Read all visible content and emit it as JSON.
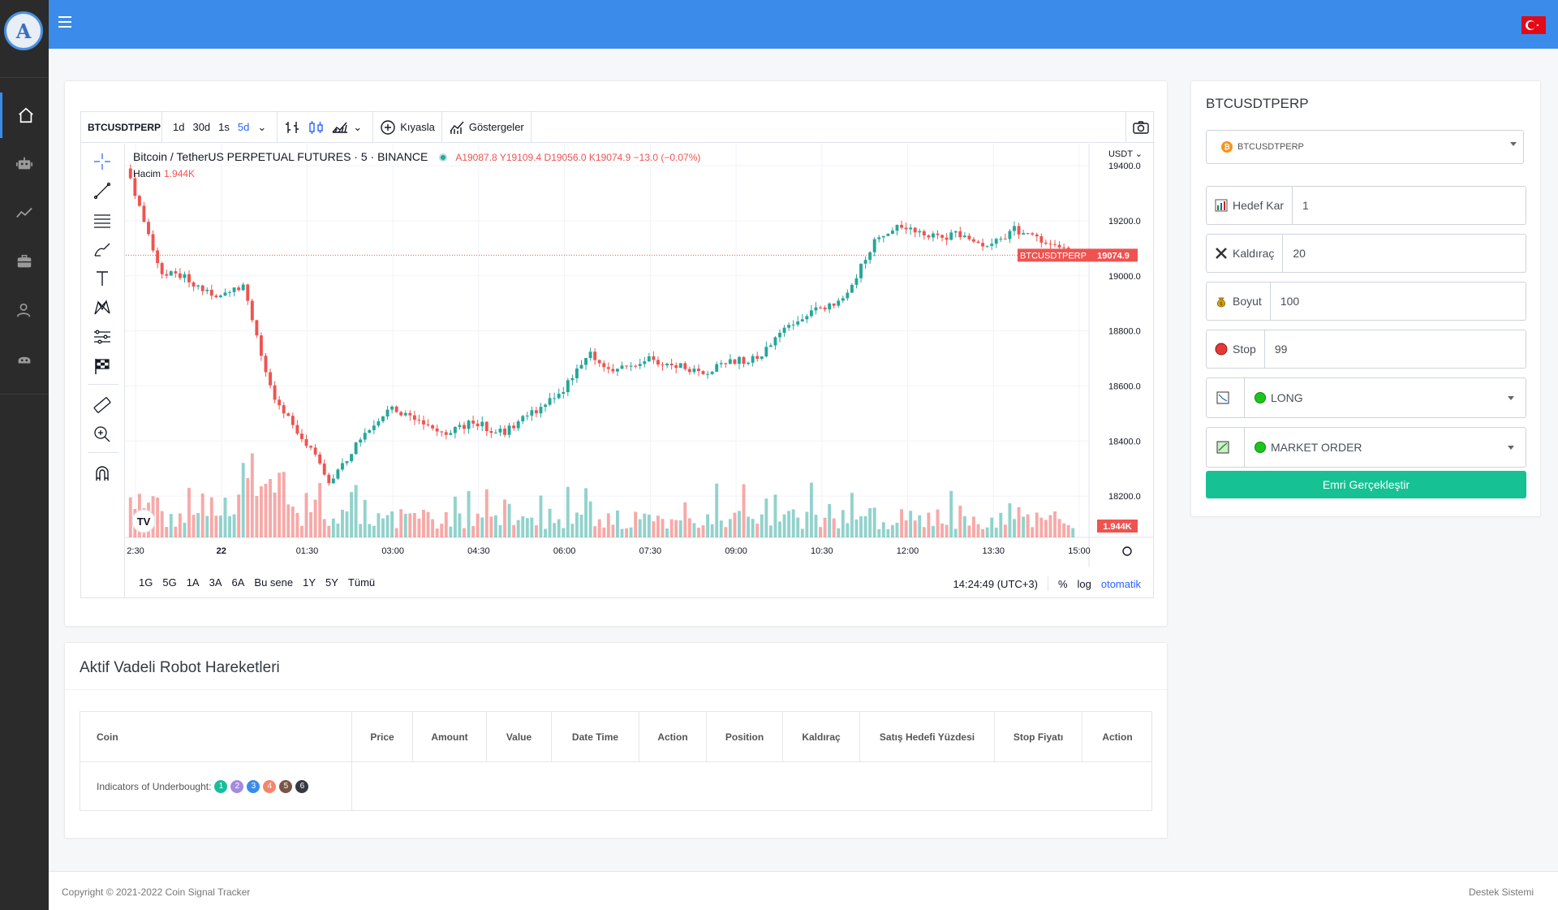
{
  "header": {
    "menu_icon": "hamburger-icon",
    "flag_icon": "turkey-flag-icon"
  },
  "sidebar": {
    "logo": "A",
    "items": [
      {
        "icon": "home-icon"
      },
      {
        "icon": "robot-icon"
      },
      {
        "icon": "chart-line-icon"
      },
      {
        "icon": "briefcase-icon"
      },
      {
        "icon": "user-settings-icon"
      },
      {
        "icon": "bot-icon"
      }
    ]
  },
  "chart_widget": {
    "symbol": "BTCUSDTPERP",
    "intervals": [
      "1d",
      "30d",
      "1s",
      "5d"
    ],
    "active_interval": "5d",
    "compare_label": "Kıyasla",
    "indicators_label": "Göstergeler",
    "legend_title": "Bitcoin / TetherUS PERPETUAL FUTURES · 5 · BINANCE",
    "ohlc": "A19087.8  Y19109.4  D19056.0  K19074.9  −13.0 (−0.07%)",
    "volume_label": "Hacim",
    "volume_value": "1.944K",
    "currency": "USDT",
    "price_ticks": [
      "19400.0",
      "19200.0",
      "19000.0",
      "18800.0",
      "18600.0",
      "18400.0",
      "18200.0"
    ],
    "time_ticks": [
      "2:30",
      "22",
      "01:30",
      "03:00",
      "04:30",
      "06:00",
      "07:30",
      "09:00",
      "10:30",
      "12:00",
      "13:30",
      "15:00"
    ],
    "last_price_symbol": "BTCUSDTPERP",
    "last_price": "19074.9",
    "last_volume": "1.944K",
    "ranges": [
      "1G",
      "5G",
      "1A",
      "3A",
      "6A",
      "Bu sene",
      "1Y",
      "5Y",
      "Tümü"
    ],
    "clock": "14:24:49 (UTC+3)",
    "percent_label": "%",
    "log_label": "log",
    "auto_label": "otomatik"
  },
  "chart_data": {
    "type": "candlestick",
    "ylim": [
      18050,
      19480
    ],
    "x": [
      "2:30",
      "22",
      "01:30",
      "03:00",
      "04:30",
      "06:00",
      "07:30",
      "09:00",
      "10:30",
      "12:00",
      "13:30",
      "15:00"
    ],
    "close_path": [
      19350,
      19020,
      18990,
      18920,
      18960,
      18550,
      18420,
      18250,
      18400,
      18520,
      18480,
      18430,
      18470,
      18430,
      18500,
      18560,
      18720,
      18650,
      18700,
      18680,
      18640,
      18690,
      18700,
      18820,
      18880,
      18920,
      19120,
      19180,
      19140,
      19150,
      19110,
      19170,
      19120,
      19074.9
    ],
    "last_price": 19074.9
  },
  "order_panel": {
    "title": "BTCUSDTPERP",
    "coin_select": "BTCUSDTPERP",
    "fields": [
      {
        "label": "Hedef Kar",
        "value": "1",
        "icon": "bar-chart-icon"
      },
      {
        "label": "Kaldıraç",
        "value": "20",
        "icon": "cross-icon"
      },
      {
        "label": "Boyut",
        "value": "100",
        "icon": "money-bag-icon"
      },
      {
        "label": "Stop",
        "value": "99",
        "icon": "red-circle-icon"
      }
    ],
    "position_select": "LONG",
    "order_type_select": "MARKET ORDER",
    "execute_label": "Emri Gerçekleştir"
  },
  "robot_table": {
    "title": "Aktif Vadeli Robot Hareketleri",
    "columns": [
      "Coin",
      "Price",
      "Amount",
      "Value",
      "Date Time",
      "Action",
      "Position",
      "Kaldıraç",
      "Satış Hedefi Yüzdesi",
      "Stop Fiyatı",
      "Action"
    ],
    "indicator_label": "Indicators of Underbought:",
    "badges": [
      {
        "n": "1",
        "color": "#1abc9c"
      },
      {
        "n": "2",
        "color": "#a48be0"
      },
      {
        "n": "3",
        "color": "#3b8bea"
      },
      {
        "n": "4",
        "color": "#f4866a"
      },
      {
        "n": "5",
        "color": "#7a5546"
      },
      {
        "n": "6",
        "color": "#343a40"
      }
    ]
  },
  "footer": {
    "copyright": "Copyright © 2021-2022 Coin Signal Tracker",
    "support": "Destek Sistemi"
  }
}
